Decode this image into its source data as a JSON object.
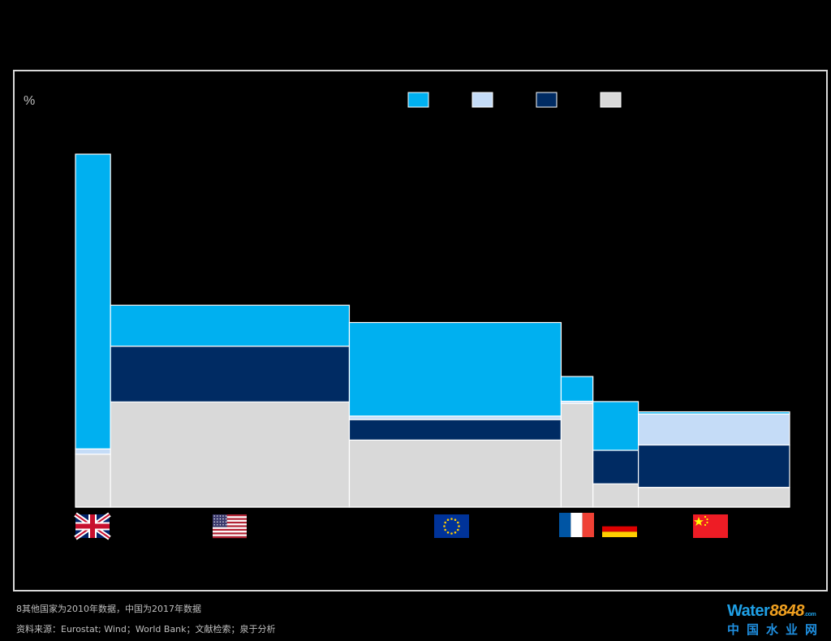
{
  "chart_data": {
    "type": "bar",
    "variant": "mekko-stacked",
    "title": "",
    "xlabel": "",
    "ylabel": "%",
    "ylim": [
      0,
      100
    ],
    "grid": false,
    "legend_position": "top-right",
    "series": [
      {
        "name": "",
        "color": "#d9d9d9"
      },
      {
        "name": "",
        "color": "#002b63"
      },
      {
        "name": "",
        "color": "#c5dcf7"
      },
      {
        "name": "",
        "color": "#00b0f0"
      }
    ],
    "categories": [
      {
        "label": "UK",
        "flag": "uk-flag-icon",
        "width": 4.4,
        "values": [
          15.0,
          0.0,
          1.5,
          83.5
        ]
      },
      {
        "label": "US",
        "flag": "us-flag-icon",
        "width": 30.0,
        "values": [
          29.8,
          15.8,
          0.0,
          11.6
        ]
      },
      {
        "label": "EU",
        "flag": "eu-flag-icon",
        "width": 26.6,
        "values": [
          19.0,
          5.8,
          1.0,
          26.5
        ]
      },
      {
        "label": "France",
        "flag": "france-flag-icon",
        "width": 4.0,
        "values": [
          29.4,
          0.0,
          0.6,
          7.0
        ]
      },
      {
        "label": "Germany",
        "flag": "germany-flag-icon",
        "width": 5.7,
        "values": [
          6.6,
          9.5,
          0.0,
          13.8
        ]
      },
      {
        "label": "China",
        "flag": "china-flag-icon",
        "width": 19.0,
        "values": [
          5.6,
          12.0,
          8.8,
          0.6
        ]
      }
    ]
  },
  "footnotes": {
    "note": "8其他国家为2010年数据，中国为2017年数据",
    "source": "资料来源：Eurostat; Wind；World Bank；文献检索；泉于分析"
  },
  "logo": {
    "main_a": "Water",
    "main_b": "8848",
    "main_c": ".com",
    "sub": "中国水业网"
  }
}
